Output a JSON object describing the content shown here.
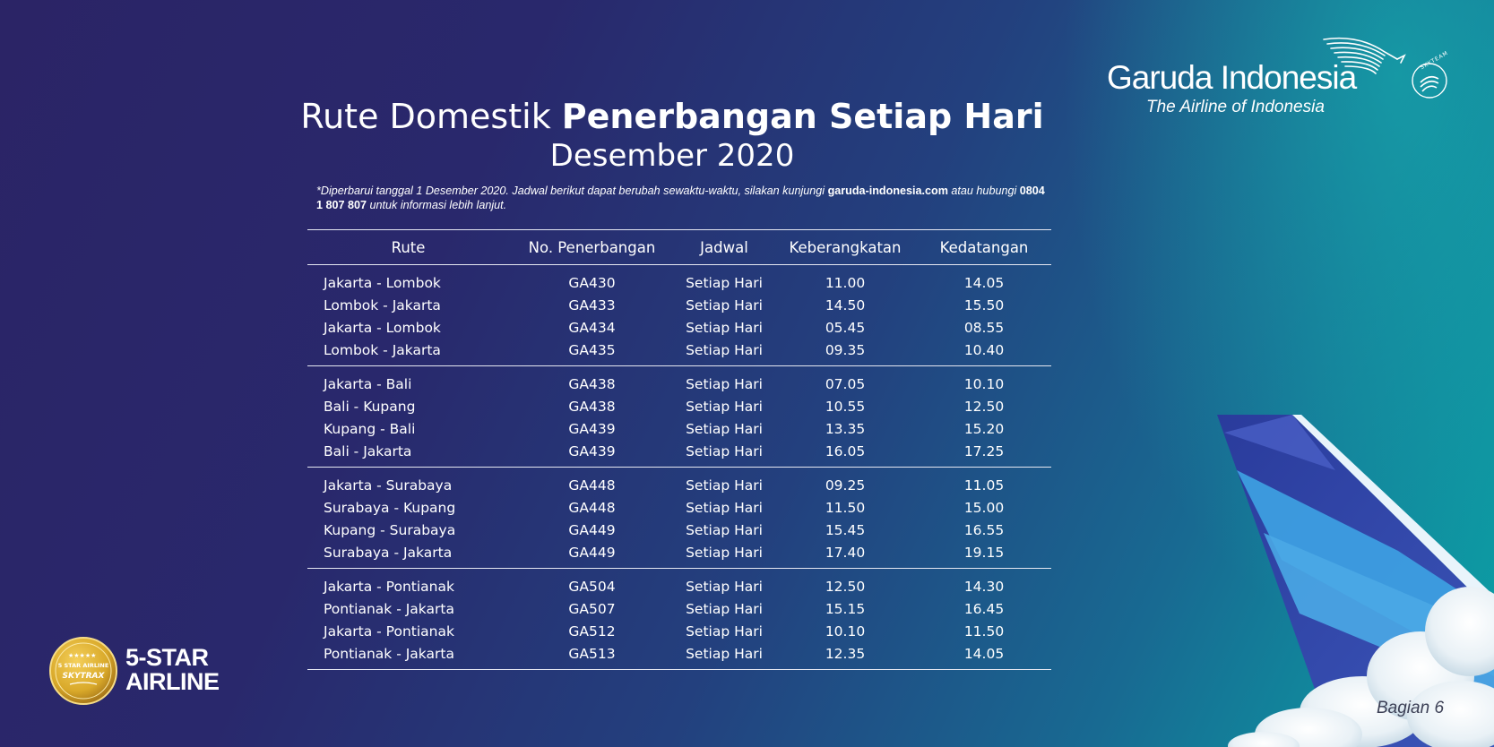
{
  "brand": {
    "name": "Garuda Indonesia",
    "tagline": "The Airline of Indonesia",
    "alliance": "SKYTEAM"
  },
  "title": {
    "part1": "Rute Domestik ",
    "part2": "Penerbangan Setiap Hari",
    "month": "Desember 2020"
  },
  "note": {
    "text1": "*Diperbarui tanggal 1 Desember 2020. Jadwal berikut dapat berubah sewaktu-waktu, silakan kunjungi ",
    "website": "garuda-indonesia.com",
    "text2": " atau hubungi ",
    "phone": "0804 1 807 807",
    "text3": " untuk informasi lebih lanjut."
  },
  "table": {
    "headers": [
      "Rute",
      "No. Penerbangan",
      "Jadwal",
      "Keberangkatan",
      "Kedatangan"
    ],
    "groups": [
      {
        "rows": [
          {
            "route": "Jakarta - Lombok",
            "flight": "GA430",
            "schedule": "Setiap Hari",
            "departure": "11.00",
            "arrival": "14.05"
          },
          {
            "route": "Lombok - Jakarta",
            "flight": "GA433",
            "schedule": "Setiap Hari",
            "departure": "14.50",
            "arrival": "15.50"
          },
          {
            "route": "Jakarta - Lombok",
            "flight": "GA434",
            "schedule": "Setiap Hari",
            "departure": "05.45",
            "arrival": "08.55"
          },
          {
            "route": "Lombok - Jakarta",
            "flight": "GA435",
            "schedule": "Setiap Hari",
            "departure": "09.35",
            "arrival": "10.40"
          }
        ]
      },
      {
        "rows": [
          {
            "route": "Jakarta - Bali",
            "flight": "GA438",
            "schedule": "Setiap Hari",
            "departure": "07.05",
            "arrival": "10.10"
          },
          {
            "route": "Bali - Kupang",
            "flight": "GA438",
            "schedule": "Setiap Hari",
            "departure": "10.55",
            "arrival": "12.50"
          },
          {
            "route": "Kupang - Bali",
            "flight": "GA439",
            "schedule": "Setiap Hari",
            "departure": "13.35",
            "arrival": "15.20"
          },
          {
            "route": "Bali - Jakarta",
            "flight": "GA439",
            "schedule": "Setiap Hari",
            "departure": "16.05",
            "arrival": "17.25"
          }
        ]
      },
      {
        "rows": [
          {
            "route": "Jakarta - Surabaya",
            "flight": "GA448",
            "schedule": "Setiap Hari",
            "departure": "09.25",
            "arrival": "11.05"
          },
          {
            "route": "Surabaya - Kupang",
            "flight": "GA448",
            "schedule": "Setiap Hari",
            "departure": "11.50",
            "arrival": "15.00"
          },
          {
            "route": "Kupang - Surabaya",
            "flight": "GA449",
            "schedule": "Setiap Hari",
            "departure": "15.45",
            "arrival": "16.55"
          },
          {
            "route": "Surabaya - Jakarta",
            "flight": "GA449",
            "schedule": "Setiap Hari",
            "departure": "17.40",
            "arrival": "19.15"
          }
        ]
      },
      {
        "rows": [
          {
            "route": "Jakarta - Pontianak",
            "flight": "GA504",
            "schedule": "Setiap Hari",
            "departure": "12.50",
            "arrival": "14.30"
          },
          {
            "route": "Pontianak - Jakarta",
            "flight": "GA507",
            "schedule": "Setiap Hari",
            "departure": "15.15",
            "arrival": "16.45"
          },
          {
            "route": "Jakarta - Pontianak",
            "flight": "GA512",
            "schedule": "Setiap Hari",
            "departure": "10.10",
            "arrival": "11.50"
          },
          {
            "route": "Pontianak - Jakarta",
            "flight": "GA513",
            "schedule": "Setiap Hari",
            "departure": "12.35",
            "arrival": "14.05"
          }
        ]
      }
    ]
  },
  "badge": {
    "seal_text": "5 STAR AIRLINE",
    "seal_brand": "SKYTRAX",
    "line1": "5-STAR",
    "line2": "AIRLINE"
  },
  "page_label": "Bagian 6",
  "colors": {
    "background_left": "#2b2466",
    "background_right": "#0aa3a6",
    "text": "#ffffff",
    "rule": "#e6e8f2",
    "badge_gold": "#d9a92a",
    "tail_blue": "#2c3a9a",
    "tail_light_blue": "#3d9ee0"
  }
}
